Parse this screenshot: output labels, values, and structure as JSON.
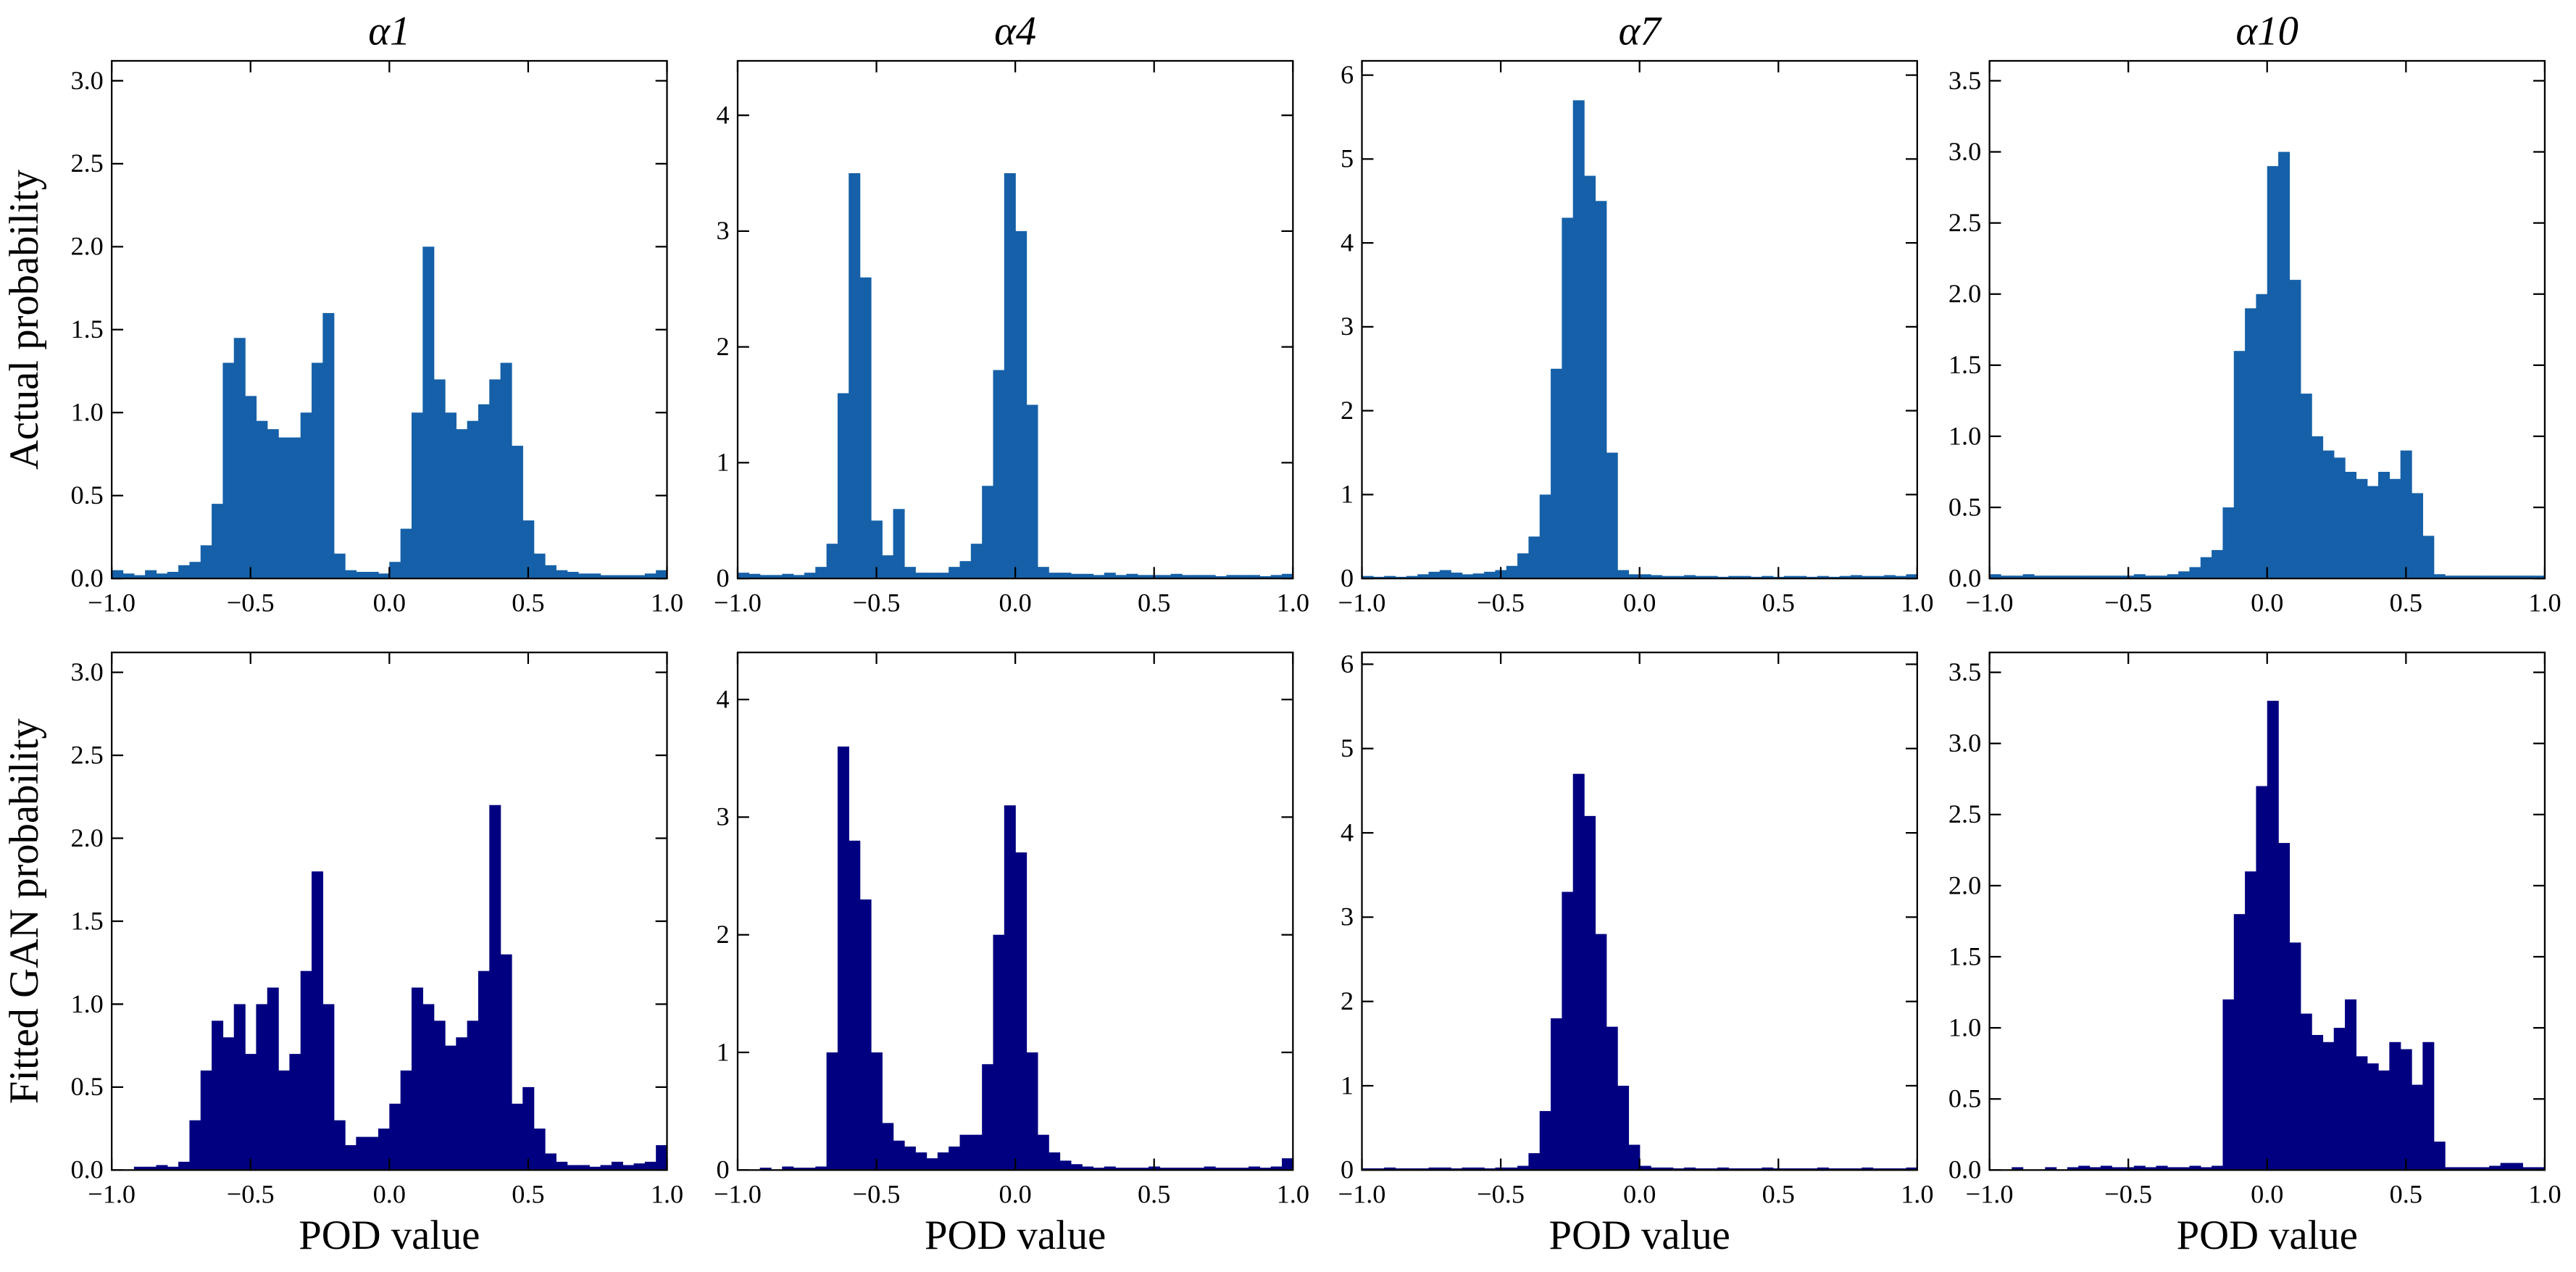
{
  "chart_data": [
    {
      "type": "histogram",
      "title": "α1",
      "ylabel": "Actual probability",
      "color": "#1560a8",
      "bins": [
        -1,
        -0.96,
        -0.92,
        -0.88,
        -0.84,
        -0.8,
        -0.76,
        -0.72,
        -0.68,
        -0.64,
        -0.6,
        -0.56,
        -0.52,
        -0.48,
        -0.44,
        -0.4,
        -0.36,
        -0.32,
        -0.28,
        -0.24,
        -0.2,
        -0.16,
        -0.12,
        -0.08,
        -0.04,
        0,
        0.04,
        0.08,
        0.12,
        0.16,
        0.2,
        0.24,
        0.28,
        0.32,
        0.36,
        0.4,
        0.44,
        0.48,
        0.52,
        0.56,
        0.6,
        0.64,
        0.68,
        0.72,
        0.76,
        0.8,
        0.84,
        0.88,
        0.92,
        0.96,
        1
      ],
      "values": [
        0.05,
        0.03,
        0.02,
        0.05,
        0.03,
        0.04,
        0.08,
        0.1,
        0.2,
        0.45,
        1.3,
        1.45,
        1.1,
        0.95,
        0.9,
        0.85,
        0.85,
        1.0,
        1.3,
        1.6,
        0.15,
        0.05,
        0.04,
        0.04,
        0.03,
        0.1,
        0.3,
        1.0,
        2.0,
        1.2,
        1.0,
        0.9,
        0.95,
        1.05,
        1.2,
        1.3,
        0.8,
        0.35,
        0.15,
        0.08,
        0.05,
        0.04,
        0.03,
        0.03,
        0.02,
        0.02,
        0.02,
        0.02,
        0.03,
        0.05
      ],
      "xlim": [
        -1,
        1
      ],
      "xticks": [
        {
          "value": -1,
          "label": "−1.0"
        },
        {
          "value": -0.5,
          "label": "−0.5"
        },
        {
          "value": 0,
          "label": "0.0"
        },
        0.5,
        {
          "value": 1,
          "label": "1.0"
        }
      ],
      "ylim": [
        0,
        3.12
      ],
      "yticks": [
        {
          "value": 0,
          "label": "0.0"
        },
        0.5,
        {
          "value": 1,
          "label": "1.0"
        },
        1.5,
        {
          "value": 2,
          "label": "2.0"
        },
        2.5,
        {
          "value": 3,
          "label": "3.0"
        }
      ]
    },
    {
      "type": "histogram",
      "title": "α4",
      "color": "#1560a8",
      "bins": [
        -1,
        -0.96,
        -0.92,
        -0.88,
        -0.84,
        -0.8,
        -0.76,
        -0.72,
        -0.68,
        -0.64,
        -0.6,
        -0.56,
        -0.52,
        -0.48,
        -0.44,
        -0.4,
        -0.36,
        -0.32,
        -0.28,
        -0.24,
        -0.2,
        -0.16,
        -0.12,
        -0.08,
        -0.04,
        0,
        0.04,
        0.08,
        0.12,
        0.16,
        0.2,
        0.24,
        0.28,
        0.32,
        0.36,
        0.4,
        0.44,
        0.48,
        0.52,
        0.56,
        0.6,
        0.64,
        0.68,
        0.72,
        0.76,
        0.8,
        0.84,
        0.88,
        0.92,
        0.96,
        1
      ],
      "values": [
        0.05,
        0.04,
        0.03,
        0.03,
        0.04,
        0.03,
        0.05,
        0.1,
        0.3,
        1.6,
        3.5,
        2.6,
        0.5,
        0.2,
        0.6,
        0.1,
        0.05,
        0.05,
        0.05,
        0.1,
        0.15,
        0.3,
        0.8,
        1.8,
        3.5,
        3.0,
        1.5,
        0.1,
        0.05,
        0.05,
        0.04,
        0.04,
        0.03,
        0.05,
        0.03,
        0.04,
        0.03,
        0.03,
        0.03,
        0.04,
        0.03,
        0.03,
        0.03,
        0.02,
        0.03,
        0.03,
        0.03,
        0.02,
        0.03,
        0.04
      ],
      "xlim": [
        -1,
        1
      ],
      "xticks": [
        {
          "value": -1,
          "label": "−1.0"
        },
        {
          "value": -0.5,
          "label": "−0.5"
        },
        {
          "value": 0,
          "label": "0.0"
        },
        0.5,
        {
          "value": 1,
          "label": "1.0"
        }
      ],
      "ylim": [
        0,
        4.47
      ],
      "yticks": [
        0,
        1,
        2,
        3,
        4
      ]
    },
    {
      "type": "histogram",
      "title": "α7",
      "color": "#1560a8",
      "bins": [
        -1,
        -0.96,
        -0.92,
        -0.88,
        -0.84,
        -0.8,
        -0.76,
        -0.72,
        -0.68,
        -0.64,
        -0.6,
        -0.56,
        -0.52,
        -0.48,
        -0.44,
        -0.4,
        -0.36,
        -0.32,
        -0.28,
        -0.24,
        -0.2,
        -0.16,
        -0.12,
        -0.08,
        -0.04,
        0,
        0.04,
        0.08,
        0.12,
        0.16,
        0.2,
        0.24,
        0.28,
        0.32,
        0.36,
        0.4,
        0.44,
        0.48,
        0.52,
        0.56,
        0.6,
        0.64,
        0.68,
        0.72,
        0.76,
        0.8,
        0.84,
        0.88,
        0.92,
        0.96,
        1
      ],
      "values": [
        0.03,
        0.02,
        0.03,
        0.02,
        0.03,
        0.05,
        0.08,
        0.1,
        0.07,
        0.05,
        0.06,
        0.08,
        0.1,
        0.15,
        0.3,
        0.5,
        1.0,
        2.5,
        4.3,
        5.7,
        4.8,
        4.5,
        1.5,
        0.1,
        0.05,
        0.05,
        0.04,
        0.03,
        0.03,
        0.04,
        0.03,
        0.03,
        0.02,
        0.03,
        0.03,
        0.02,
        0.03,
        0.02,
        0.03,
        0.03,
        0.02,
        0.03,
        0.02,
        0.03,
        0.04,
        0.03,
        0.03,
        0.04,
        0.03,
        0.05
      ],
      "xlim": [
        -1,
        1
      ],
      "xticks": [
        {
          "value": -1,
          "label": "−1.0"
        },
        {
          "value": -0.5,
          "label": "−0.5"
        },
        {
          "value": 0,
          "label": "0.0"
        },
        0.5,
        {
          "value": 1,
          "label": "1.0"
        }
      ],
      "ylim": [
        0,
        6.17
      ],
      "yticks": [
        0,
        1,
        2,
        3,
        4,
        5,
        6
      ]
    },
    {
      "type": "histogram",
      "title": "α10",
      "color": "#1560a8",
      "bins": [
        -1,
        -0.96,
        -0.92,
        -0.88,
        -0.84,
        -0.8,
        -0.76,
        -0.72,
        -0.68,
        -0.64,
        -0.6,
        -0.56,
        -0.52,
        -0.48,
        -0.44,
        -0.4,
        -0.36,
        -0.32,
        -0.28,
        -0.24,
        -0.2,
        -0.16,
        -0.12,
        -0.08,
        -0.04,
        0,
        0.04,
        0.08,
        0.12,
        0.16,
        0.2,
        0.24,
        0.28,
        0.32,
        0.36,
        0.4,
        0.44,
        0.48,
        0.52,
        0.56,
        0.6,
        0.64,
        0.68,
        0.72,
        0.76,
        0.8,
        0.84,
        0.88,
        0.92,
        0.96,
        1
      ],
      "values": [
        0.03,
        0.02,
        0.02,
        0.03,
        0.02,
        0.02,
        0.02,
        0.02,
        0.02,
        0.02,
        0.02,
        0.02,
        0.02,
        0.03,
        0.02,
        0.02,
        0.03,
        0.05,
        0.08,
        0.15,
        0.2,
        0.5,
        1.6,
        1.9,
        2.0,
        2.9,
        3.0,
        2.1,
        1.3,
        1.0,
        0.9,
        0.85,
        0.75,
        0.7,
        0.65,
        0.75,
        0.7,
        0.9,
        0.6,
        0.3,
        0.03,
        0.02,
        0.02,
        0.02,
        0.02,
        0.02,
        0.02,
        0.02,
        0.02,
        0.02
      ],
      "xlim": [
        -1,
        1
      ],
      "xticks": [
        {
          "value": -1,
          "label": "−1.0"
        },
        {
          "value": -0.5,
          "label": "−0.5"
        },
        {
          "value": 0,
          "label": "0.0"
        },
        0.5,
        {
          "value": 1,
          "label": "1.0"
        }
      ],
      "ylim": [
        0,
        3.64
      ],
      "yticks": [
        {
          "value": 0,
          "label": "0.0"
        },
        0.5,
        {
          "value": 1,
          "label": "1.0"
        },
        1.5,
        {
          "value": 2,
          "label": "2.0"
        },
        2.5,
        {
          "value": 3,
          "label": "3.0"
        },
        3.5
      ]
    },
    {
      "type": "histogram",
      "ylabel": "Fitted GAN probability",
      "xlabel": "POD value",
      "color": "#000080",
      "bins": [
        -1,
        -0.96,
        -0.92,
        -0.88,
        -0.84,
        -0.8,
        -0.76,
        -0.72,
        -0.68,
        -0.64,
        -0.6,
        -0.56,
        -0.52,
        -0.48,
        -0.44,
        -0.4,
        -0.36,
        -0.32,
        -0.28,
        -0.24,
        -0.2,
        -0.16,
        -0.12,
        -0.08,
        -0.04,
        0,
        0.04,
        0.08,
        0.12,
        0.16,
        0.2,
        0.24,
        0.28,
        0.32,
        0.36,
        0.4,
        0.44,
        0.48,
        0.52,
        0.56,
        0.6,
        0.64,
        0.68,
        0.72,
        0.76,
        0.8,
        0.84,
        0.88,
        0.92,
        0.96,
        1
      ],
      "values": [
        0,
        0,
        0.02,
        0.02,
        0.03,
        0.02,
        0.05,
        0.3,
        0.6,
        0.9,
        0.8,
        1.0,
        0.7,
        1.0,
        1.1,
        0.6,
        0.7,
        1.2,
        1.8,
        1.0,
        0.3,
        0.15,
        0.2,
        0.2,
        0.25,
        0.4,
        0.6,
        1.1,
        1.0,
        0.9,
        0.75,
        0.8,
        0.9,
        1.2,
        2.2,
        1.3,
        0.4,
        0.5,
        0.25,
        0.1,
        0.05,
        0.03,
        0.03,
        0.02,
        0.03,
        0.05,
        0.03,
        0.04,
        0.05,
        0.15
      ],
      "xlim": [
        -1,
        1
      ],
      "xticks": [
        {
          "value": -1,
          "label": "−1.0"
        },
        {
          "value": -0.5,
          "label": "−0.5"
        },
        {
          "value": 0,
          "label": "0.0"
        },
        0.5,
        {
          "value": 1,
          "label": "1.0"
        }
      ],
      "ylim": [
        0,
        3.12
      ],
      "yticks": [
        {
          "value": 0,
          "label": "0.0"
        },
        0.5,
        {
          "value": 1,
          "label": "1.0"
        },
        1.5,
        {
          "value": 2,
          "label": "2.0"
        },
        2.5,
        {
          "value": 3,
          "label": "3.0"
        }
      ]
    },
    {
      "type": "histogram",
      "xlabel": "POD value",
      "color": "#000080",
      "bins": [
        -1,
        -0.96,
        -0.92,
        -0.88,
        -0.84,
        -0.8,
        -0.76,
        -0.72,
        -0.68,
        -0.64,
        -0.6,
        -0.56,
        -0.52,
        -0.48,
        -0.44,
        -0.4,
        -0.36,
        -0.32,
        -0.28,
        -0.24,
        -0.2,
        -0.16,
        -0.12,
        -0.08,
        -0.04,
        0,
        0.04,
        0.08,
        0.12,
        0.16,
        0.2,
        0.24,
        0.28,
        0.32,
        0.36,
        0.4,
        0.44,
        0.48,
        0.52,
        0.56,
        0.6,
        0.64,
        0.68,
        0.72,
        0.76,
        0.8,
        0.84,
        0.88,
        0.92,
        0.96,
        1
      ],
      "values": [
        0,
        0,
        0.02,
        0,
        0.03,
        0.02,
        0.02,
        0.03,
        1.0,
        3.6,
        2.8,
        2.3,
        1.0,
        0.4,
        0.25,
        0.2,
        0.15,
        0.1,
        0.15,
        0.2,
        0.3,
        0.3,
        0.9,
        2.0,
        3.1,
        2.7,
        1.0,
        0.3,
        0.15,
        0.08,
        0.05,
        0.03,
        0.02,
        0.03,
        0.02,
        0.02,
        0.02,
        0.03,
        0.02,
        0.02,
        0.02,
        0.02,
        0.03,
        0.02,
        0.02,
        0.02,
        0.03,
        0.02,
        0.03,
        0.1
      ],
      "xlim": [
        -1,
        1
      ],
      "xticks": [
        {
          "value": -1,
          "label": "−1.0"
        },
        {
          "value": -0.5,
          "label": "−0.5"
        },
        {
          "value": 0,
          "label": "0.0"
        },
        0.5,
        {
          "value": 1,
          "label": "1.0"
        }
      ],
      "ylim": [
        0,
        4.4
      ],
      "yticks": [
        0,
        1,
        2,
        3,
        4
      ]
    },
    {
      "type": "histogram",
      "xlabel": "POD value",
      "color": "#000080",
      "bins": [
        -1,
        -0.96,
        -0.92,
        -0.88,
        -0.84,
        -0.8,
        -0.76,
        -0.72,
        -0.68,
        -0.64,
        -0.6,
        -0.56,
        -0.52,
        -0.48,
        -0.44,
        -0.4,
        -0.36,
        -0.32,
        -0.28,
        -0.24,
        -0.2,
        -0.16,
        -0.12,
        -0.08,
        -0.04,
        0,
        0.04,
        0.08,
        0.12,
        0.16,
        0.2,
        0.24,
        0.28,
        0.32,
        0.36,
        0.4,
        0.44,
        0.48,
        0.52,
        0.56,
        0.6,
        0.64,
        0.68,
        0.72,
        0.76,
        0.8,
        0.84,
        0.88,
        0.92,
        0.96,
        1
      ],
      "values": [
        0.02,
        0.02,
        0.03,
        0.02,
        0.02,
        0.02,
        0.03,
        0.03,
        0.02,
        0.03,
        0.03,
        0.02,
        0.03,
        0.03,
        0.05,
        0.2,
        0.7,
        1.8,
        3.3,
        4.7,
        4.2,
        2.8,
        1.7,
        1.0,
        0.3,
        0.05,
        0.03,
        0.03,
        0.02,
        0.03,
        0.02,
        0.02,
        0.03,
        0.02,
        0.02,
        0.02,
        0.03,
        0.02,
        0.02,
        0.02,
        0.02,
        0.03,
        0.02,
        0.02,
        0.02,
        0.03,
        0.02,
        0.02,
        0.02,
        0.03
      ],
      "xlim": [
        -1,
        1
      ],
      "xticks": [
        {
          "value": -1,
          "label": "−1.0"
        },
        {
          "value": -0.5,
          "label": "−0.5"
        },
        {
          "value": 0,
          "label": "0.0"
        },
        0.5,
        {
          "value": 1,
          "label": "1.0"
        }
      ],
      "ylim": [
        0,
        6.14
      ],
      "yticks": [
        0,
        1,
        2,
        3,
        4,
        5,
        6
      ]
    },
    {
      "type": "histogram",
      "xlabel": "POD value",
      "color": "#000080",
      "bins": [
        -1,
        -0.96,
        -0.92,
        -0.88,
        -0.84,
        -0.8,
        -0.76,
        -0.72,
        -0.68,
        -0.64,
        -0.6,
        -0.56,
        -0.52,
        -0.48,
        -0.44,
        -0.4,
        -0.36,
        -0.32,
        -0.28,
        -0.24,
        -0.2,
        -0.16,
        -0.12,
        -0.08,
        -0.04,
        0,
        0.04,
        0.08,
        0.12,
        0.16,
        0.2,
        0.24,
        0.28,
        0.32,
        0.36,
        0.4,
        0.44,
        0.48,
        0.52,
        0.56,
        0.6,
        0.64,
        0.68,
        0.72,
        0.76,
        0.8,
        0.84,
        0.88,
        0.92,
        0.96,
        1
      ],
      "values": [
        0,
        0,
        0.02,
        0,
        0,
        0.02,
        0,
        0.02,
        0.03,
        0.02,
        0.03,
        0.02,
        0.02,
        0.03,
        0.02,
        0.03,
        0.02,
        0.02,
        0.03,
        0.02,
        0.03,
        1.2,
        1.8,
        2.1,
        2.7,
        3.3,
        2.3,
        1.6,
        1.1,
        0.95,
        0.9,
        1.0,
        1.2,
        0.8,
        0.75,
        0.7,
        0.9,
        0.85,
        0.6,
        0.9,
        0.2,
        0.02,
        0.02,
        0.02,
        0.02,
        0.03,
        0.05,
        0.05,
        0.02,
        0.02
      ],
      "xlim": [
        -1,
        1
      ],
      "xticks": [
        {
          "value": -1,
          "label": "−1.0"
        },
        {
          "value": -0.5,
          "label": "−0.5"
        },
        {
          "value": 0,
          "label": "0.0"
        },
        0.5,
        {
          "value": 1,
          "label": "1.0"
        }
      ],
      "ylim": [
        0,
        3.64
      ],
      "yticks": [
        {
          "value": 0,
          "label": "0.0"
        },
        0.5,
        {
          "value": 1,
          "label": "1.0"
        },
        1.5,
        {
          "value": 2,
          "label": "2.0"
        },
        2.5,
        {
          "value": 3,
          "label": "3.0"
        },
        3.5
      ]
    }
  ]
}
